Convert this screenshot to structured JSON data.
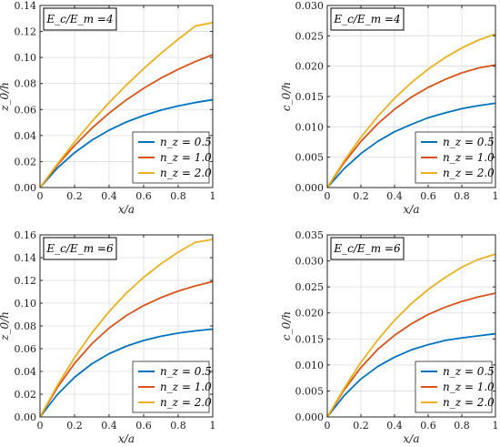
{
  "chart_data": [
    {
      "type": "line",
      "annotation": "E_c/E_m =4",
      "xlabel": "x/a",
      "ylabel": "z_0/h",
      "xlim": [
        0,
        1
      ],
      "ylim": [
        0,
        0.14
      ],
      "xticks": [
        "0",
        "0.2",
        "0.4",
        "0.6",
        "0.8",
        "1"
      ],
      "yticks": [
        "0.00",
        "0.02",
        "0.04",
        "0.06",
        "0.08",
        "0.10",
        "0.12",
        "0.14"
      ],
      "grid": true,
      "legend_position": "bottom-right",
      "x": [
        0,
        0.1,
        0.2,
        0.3,
        0.4,
        0.5,
        0.6,
        0.7,
        0.8,
        0.9,
        1.0
      ],
      "series": [
        {
          "name": "n_z = 0.5",
          "color": "#0072BD",
          "values": [
            0,
            0.0149,
            0.0268,
            0.0364,
            0.0441,
            0.0504,
            0.0554,
            0.0595,
            0.0627,
            0.0654,
            0.0675
          ]
        },
        {
          "name": "n_z = 1.0",
          "color": "#D95319",
          "values": [
            0,
            0.0172,
            0.0323,
            0.0456,
            0.0572,
            0.0674,
            0.0763,
            0.0841,
            0.0909,
            0.0969,
            0.1021
          ]
        },
        {
          "name": "n_z = 2.0",
          "color": "#EDB120",
          "values": [
            0,
            0.0181,
            0.035,
            0.0507,
            0.0653,
            0.0788,
            0.0914,
            0.1031,
            0.114,
            0.1242,
            0.1268
          ]
        }
      ]
    },
    {
      "type": "line",
      "annotation": "E_c/E_m =4",
      "xlabel": "x/a",
      "ylabel": "c_0/h",
      "xlim": [
        0,
        1
      ],
      "ylim": [
        0,
        0.03
      ],
      "xticks": [
        "0",
        "0.2",
        "0.4",
        "0.6",
        "0.8",
        "1"
      ],
      "yticks": [
        "0.000",
        "0.005",
        "0.010",
        "0.015",
        "0.020",
        "0.025",
        "0.030"
      ],
      "grid": true,
      "legend_position": "bottom-right",
      "x": [
        0,
        0.1,
        0.2,
        0.3,
        0.4,
        0.5,
        0.6,
        0.7,
        0.8,
        0.9,
        1.0
      ],
      "series": [
        {
          "name": "n_z = 0.5",
          "color": "#0072BD",
          "values": [
            0,
            0.0031,
            0.0056,
            0.0076,
            0.0092,
            0.0104,
            0.0115,
            0.0123,
            0.013,
            0.0135,
            0.0139
          ]
        },
        {
          "name": "n_z = 1.0",
          "color": "#D95319",
          "values": [
            0,
            0.0041,
            0.0076,
            0.0105,
            0.0129,
            0.0149,
            0.0165,
            0.0178,
            0.0189,
            0.0197,
            0.0202
          ]
        },
        {
          "name": "n_z = 2.0",
          "color": "#EDB120",
          "values": [
            0,
            0.0044,
            0.0083,
            0.0117,
            0.0147,
            0.0173,
            0.0195,
            0.0214,
            0.023,
            0.0243,
            0.0253
          ]
        }
      ]
    },
    {
      "type": "line",
      "annotation": "E_c/E_m =6",
      "xlabel": "x/a",
      "ylabel": "z_0/h",
      "xlim": [
        0,
        1
      ],
      "ylim": [
        0,
        0.16
      ],
      "xticks": [
        "0",
        "0.2",
        "0.4",
        "0.6",
        "0.8",
        "1"
      ],
      "yticks": [
        "0.00",
        "0.02",
        "0.04",
        "0.06",
        "0.08",
        "0.10",
        "0.12",
        "0.14",
        "0.16"
      ],
      "grid": true,
      "legend_position": "bottom-right",
      "x": [
        0,
        0.1,
        0.2,
        0.3,
        0.4,
        0.5,
        0.6,
        0.7,
        0.8,
        0.9,
        1.0
      ],
      "series": [
        {
          "name": "n_z = 0.5",
          "color": "#0072BD",
          "values": [
            0,
            0.0196,
            0.0349,
            0.0467,
            0.0556,
            0.0622,
            0.0672,
            0.0709,
            0.0737,
            0.0757,
            0.0772
          ]
        },
        {
          "name": "n_z = 1.0",
          "color": "#D95319",
          "values": [
            0,
            0.0258,
            0.0471,
            0.0643,
            0.0781,
            0.0891,
            0.0979,
            0.1049,
            0.1106,
            0.1152,
            0.119
          ]
        },
        {
          "name": "n_z = 2.0",
          "color": "#EDB120",
          "values": [
            0,
            0.0276,
            0.0522,
            0.0738,
            0.0926,
            0.1088,
            0.1227,
            0.1346,
            0.1448,
            0.1535,
            0.156
          ]
        }
      ]
    },
    {
      "type": "line",
      "annotation": "E_c/E_m =6",
      "xlabel": "x/a",
      "ylabel": "c_0/h",
      "xlim": [
        0,
        1
      ],
      "ylim": [
        0,
        0.035
      ],
      "xticks": [
        "0",
        "0.2",
        "0.4",
        "0.6",
        "0.8",
        "1"
      ],
      "yticks": [
        "0.000",
        "0.005",
        "0.010",
        "0.015",
        "0.020",
        "0.025",
        "0.030",
        "0.035"
      ],
      "grid": true,
      "legend_position": "bottom-right",
      "x": [
        0,
        0.1,
        0.2,
        0.3,
        0.4,
        0.5,
        0.6,
        0.7,
        0.8,
        0.9,
        1.0
      ],
      "series": [
        {
          "name": "n_z = 0.5",
          "color": "#0072BD",
          "values": [
            0,
            0.0041,
            0.0073,
            0.0097,
            0.0115,
            0.0129,
            0.0139,
            0.0147,
            0.0152,
            0.0156,
            0.016
          ]
        },
        {
          "name": "n_z = 1.0",
          "color": "#D95319",
          "values": [
            0,
            0.0052,
            0.0095,
            0.013,
            0.0157,
            0.0179,
            0.0197,
            0.0211,
            0.0222,
            0.0231,
            0.0238
          ]
        },
        {
          "name": "n_z = 2.0",
          "color": "#EDB120",
          "values": [
            0,
            0.0055,
            0.0105,
            0.0148,
            0.0186,
            0.0218,
            0.0245,
            0.0268,
            0.0288,
            0.0303,
            0.0313
          ]
        }
      ]
    }
  ]
}
